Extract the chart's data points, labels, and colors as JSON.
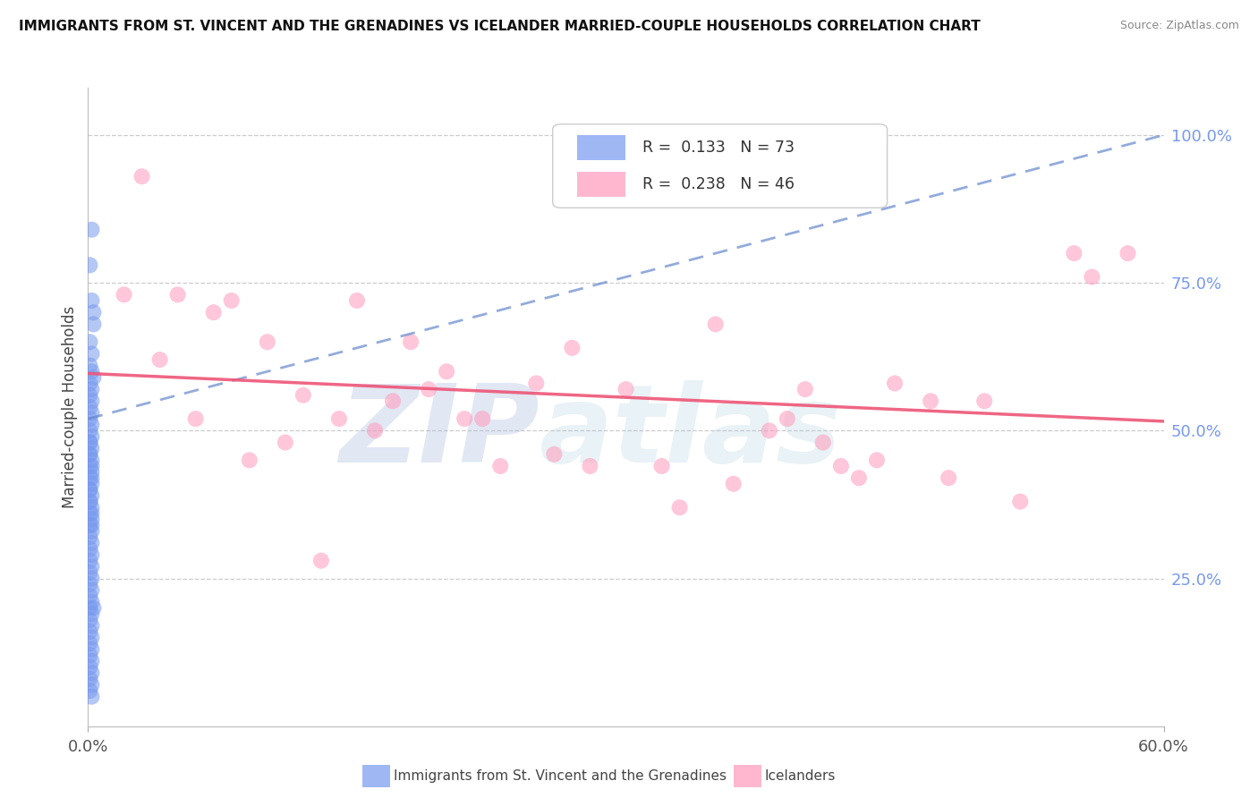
{
  "title": "IMMIGRANTS FROM ST. VINCENT AND THE GRENADINES VS ICELANDER MARRIED-COUPLE HOUSEHOLDS CORRELATION CHART",
  "source": "Source: ZipAtlas.com",
  "ylabel": "Married-couple Households",
  "xlim": [
    0.0,
    0.6
  ],
  "ylim": [
    0.0,
    1.08
  ],
  "xtick_pos": [
    0.0,
    0.6
  ],
  "xtick_labels": [
    "0.0%",
    "60.0%"
  ],
  "yticks_right": [
    0.25,
    0.5,
    0.75,
    1.0
  ],
  "ytick_labels_right": [
    "25.0%",
    "50.0%",
    "75.0%",
    "100.0%"
  ],
  "blue_R": 0.133,
  "blue_N": 73,
  "pink_R": 0.238,
  "pink_N": 46,
  "blue_color": "#7799EE",
  "pink_color": "#FF99BB",
  "blue_trend_color": "#6688CC",
  "pink_trend_color": "#EE5577",
  "legend_label_blue": "Immigrants from St. Vincent and the Grenadines",
  "legend_label_pink": "Icelanders",
  "watermark_zip": "ZIP",
  "watermark_atlas": "atlas",
  "blue_x": [
    0.002,
    0.003,
    0.001,
    0.002,
    0.003,
    0.001,
    0.002,
    0.001,
    0.002,
    0.003,
    0.001,
    0.002,
    0.001,
    0.002,
    0.001,
    0.002,
    0.001,
    0.002,
    0.001,
    0.002,
    0.001,
    0.002,
    0.001,
    0.002,
    0.001,
    0.002,
    0.001,
    0.002,
    0.001,
    0.002,
    0.001,
    0.002,
    0.001,
    0.002,
    0.001,
    0.002,
    0.001,
    0.002,
    0.001,
    0.002,
    0.001,
    0.002,
    0.001,
    0.002,
    0.001,
    0.002,
    0.001,
    0.002,
    0.001,
    0.002,
    0.001,
    0.002,
    0.001,
    0.002,
    0.001,
    0.002,
    0.001,
    0.002,
    0.001,
    0.002,
    0.001,
    0.002,
    0.001,
    0.002,
    0.001,
    0.002,
    0.001,
    0.002,
    0.001,
    0.002,
    0.001,
    0.002,
    0.003
  ],
  "blue_y": [
    0.84,
    0.7,
    0.78,
    0.72,
    0.68,
    0.65,
    0.63,
    0.61,
    0.6,
    0.59,
    0.58,
    0.57,
    0.56,
    0.55,
    0.54,
    0.53,
    0.52,
    0.51,
    0.5,
    0.49,
    0.48,
    0.47,
    0.46,
    0.45,
    0.44,
    0.43,
    0.42,
    0.41,
    0.4,
    0.39,
    0.38,
    0.37,
    0.36,
    0.35,
    0.34,
    0.33,
    0.32,
    0.31,
    0.3,
    0.29,
    0.28,
    0.27,
    0.26,
    0.25,
    0.24,
    0.23,
    0.22,
    0.21,
    0.2,
    0.19,
    0.18,
    0.17,
    0.16,
    0.15,
    0.14,
    0.13,
    0.12,
    0.11,
    0.1,
    0.09,
    0.08,
    0.07,
    0.06,
    0.05,
    0.48,
    0.44,
    0.4,
    0.36,
    0.46,
    0.42,
    0.38,
    0.34,
    0.2
  ],
  "pink_x": [
    0.05,
    0.08,
    0.1,
    0.12,
    0.15,
    0.17,
    0.18,
    0.2,
    0.22,
    0.03,
    0.25,
    0.27,
    0.3,
    0.35,
    0.38,
    0.4,
    0.42,
    0.45,
    0.48,
    0.5,
    0.55,
    0.58,
    0.02,
    0.04,
    0.06,
    0.09,
    0.11,
    0.14,
    0.16,
    0.19,
    0.21,
    0.23,
    0.26,
    0.28,
    0.32,
    0.36,
    0.39,
    0.41,
    0.44,
    0.47,
    0.52,
    0.56,
    0.07,
    0.13,
    0.33,
    0.43
  ],
  "pink_y": [
    0.73,
    0.72,
    0.65,
    0.56,
    0.72,
    0.55,
    0.65,
    0.6,
    0.52,
    0.93,
    0.58,
    0.64,
    0.57,
    0.68,
    0.5,
    0.57,
    0.44,
    0.58,
    0.42,
    0.55,
    0.8,
    0.8,
    0.73,
    0.62,
    0.52,
    0.45,
    0.48,
    0.52,
    0.5,
    0.57,
    0.52,
    0.44,
    0.46,
    0.44,
    0.44,
    0.41,
    0.52,
    0.48,
    0.45,
    0.55,
    0.38,
    0.76,
    0.7,
    0.28,
    0.37,
    0.42
  ]
}
